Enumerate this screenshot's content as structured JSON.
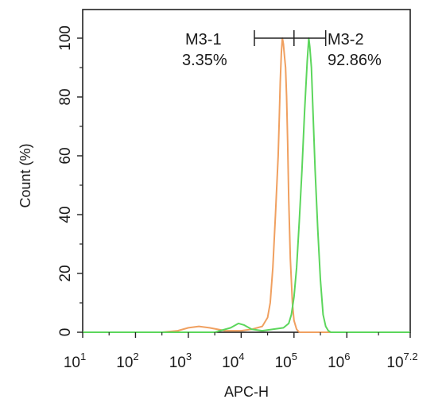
{
  "chart_data": {
    "type": "line",
    "title": "",
    "xlabel": "APC-H",
    "ylabel": "Count (%)",
    "x_scale": "log",
    "xlim": [
      1,
      7.2
    ],
    "ylim": [
      0,
      110
    ],
    "x_ticks": [
      {
        "base": "10",
        "exp": "1",
        "value": 1
      },
      {
        "base": "10",
        "exp": "2",
        "value": 2
      },
      {
        "base": "10",
        "exp": "3",
        "value": 3
      },
      {
        "base": "10",
        "exp": "4",
        "value": 4
      },
      {
        "base": "10",
        "exp": "5",
        "value": 5
      },
      {
        "base": "10",
        "exp": "6",
        "value": 6
      },
      {
        "base": "10",
        "exp": "7.2",
        "value": 7.2
      }
    ],
    "y_ticks": [
      "0",
      "20",
      "40",
      "60",
      "80",
      "100"
    ],
    "grid": false,
    "series": [
      {
        "color": "#f0a060",
        "x": [
          1.0,
          2.5,
          2.8,
          3.0,
          3.2,
          3.4,
          3.7,
          4.0,
          4.2,
          4.4,
          4.5,
          4.55,
          4.6,
          4.65,
          4.7,
          4.72,
          4.74,
          4.76,
          4.78,
          4.8,
          4.82,
          4.84,
          4.86,
          4.88,
          4.9,
          4.93,
          4.97,
          5.0,
          5.05,
          5.1,
          5.5,
          7.2
        ],
        "y": [
          0,
          0,
          0.5,
          1.5,
          2,
          1.5,
          0.5,
          0.5,
          1,
          2,
          5,
          10,
          22,
          40,
          60,
          72,
          85,
          95,
          100,
          98,
          94,
          90,
          80,
          65,
          45,
          25,
          10,
          4,
          1,
          0,
          0,
          0
        ]
      },
      {
        "color": "#5cd65c",
        "x": [
          1.0,
          3.5,
          3.8,
          3.95,
          4.05,
          4.2,
          4.4,
          4.6,
          4.8,
          4.9,
          4.95,
          5.0,
          5.05,
          5.1,
          5.15,
          5.2,
          5.25,
          5.28,
          5.3,
          5.33,
          5.36,
          5.4,
          5.45,
          5.5,
          5.55,
          5.6,
          5.65,
          5.7,
          7.2
        ],
        "y": [
          0,
          0,
          1.5,
          3,
          2.5,
          1,
          0.5,
          1,
          1.5,
          3,
          6,
          12,
          22,
          38,
          55,
          75,
          92,
          100,
          97,
          90,
          75,
          55,
          35,
          18,
          6,
          2,
          0.5,
          0,
          0
        ]
      }
    ],
    "annotations": {
      "m31_label": "M3-1",
      "m31_value": "3.35%",
      "m32_label": "M3-2",
      "m32_value": "92.86%",
      "gate_x": [
        4.25,
        5.0,
        5.6
      ],
      "gate_y": 100
    }
  }
}
